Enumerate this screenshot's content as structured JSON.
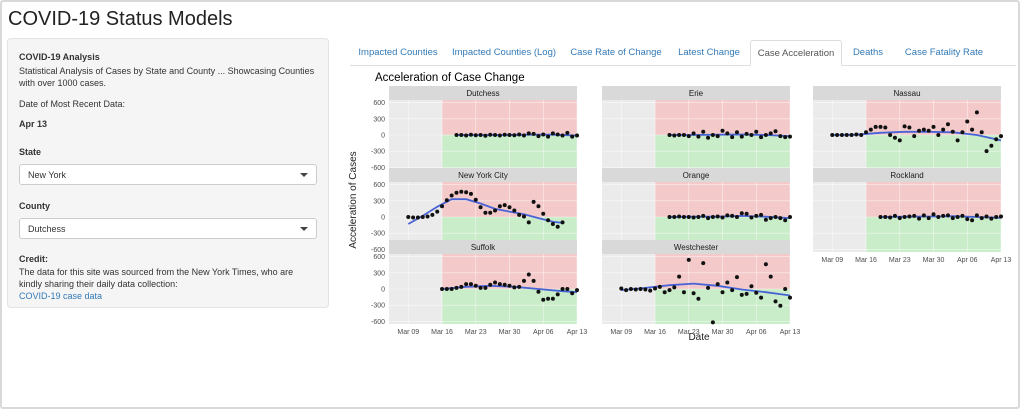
{
  "app": {
    "title": "COVID-19 Status Models"
  },
  "sidebar": {
    "heading": "COVID-19 Analysis",
    "description": "Statistical Analysis of Cases by State and County ... Showcasing Counties with over 1000 cases.",
    "recent_label": "Date of Most Recent Data:",
    "recent_value": "Apr 13",
    "state_label": "State",
    "state_value": "New York",
    "county_label": "County",
    "county_value": "Dutchess",
    "credit_label": "Credit:",
    "credit_text": "The data for this site was sourced from the New York Times, who are kindly sharing their daily data collection:",
    "credit_link": "COVID-19 case data"
  },
  "tabs": [
    {
      "label": "Impacted Counties",
      "active": false
    },
    {
      "label": "Impacted Counties (Log)",
      "active": false
    },
    {
      "label": "Case Rate of Change",
      "active": false
    },
    {
      "label": "Latest Change",
      "active": false
    },
    {
      "label": "Case Acceleration",
      "active": true
    },
    {
      "label": "Deaths",
      "active": false
    },
    {
      "label": "Case Fatality Rate",
      "active": false
    }
  ],
  "chart_data": {
    "type": "scatter",
    "title": "Acceleration of Case Change",
    "xlabel": "Date",
    "ylabel": "Acceleration of Cases",
    "x_ticks": [
      "Mar 09",
      "Mar 16",
      "Mar 23",
      "Mar 30",
      "Apr 06",
      "Apr 13"
    ],
    "y_ticks": [
      600,
      300,
      0,
      -300,
      -600
    ],
    "ylim": [
      -650,
      650
    ],
    "x_range_days": [
      -4,
      35
    ],
    "band_start_day": 7,
    "colors": {
      "positive_band": "#f4c9c9",
      "negative_band": "#c9ecc9",
      "trend": "#4863d6",
      "points": "#111111"
    },
    "panels": [
      {
        "name": "Dutchess",
        "points": [
          [
            10,
            0
          ],
          [
            11,
            0
          ],
          [
            12,
            -10
          ],
          [
            13,
            5
          ],
          [
            14,
            -5
          ],
          [
            15,
            0
          ],
          [
            16,
            -15
          ],
          [
            17,
            5
          ],
          [
            18,
            0
          ],
          [
            19,
            -10
          ],
          [
            20,
            5
          ],
          [
            21,
            0
          ],
          [
            22,
            -5
          ],
          [
            23,
            10
          ],
          [
            24,
            -10
          ],
          [
            25,
            30
          ],
          [
            26,
            20
          ],
          [
            27,
            -20
          ],
          [
            28,
            10
          ],
          [
            29,
            -30
          ],
          [
            30,
            30
          ],
          [
            31,
            10
          ],
          [
            32,
            -10
          ],
          [
            33,
            40
          ],
          [
            34,
            -30
          ],
          [
            35,
            -10
          ]
        ],
        "trend": [
          [
            10,
            0
          ],
          [
            15,
            0
          ],
          [
            20,
            0
          ],
          [
            25,
            5
          ],
          [
            30,
            5
          ],
          [
            35,
            -10
          ]
        ]
      },
      {
        "name": "Erie",
        "points": [
          [
            10,
            0
          ],
          [
            11,
            -10
          ],
          [
            12,
            0
          ],
          [
            13,
            0
          ],
          [
            14,
            -20
          ],
          [
            15,
            30
          ],
          [
            16,
            -30
          ],
          [
            17,
            60
          ],
          [
            18,
            -50
          ],
          [
            19,
            0
          ],
          [
            20,
            -20
          ],
          [
            21,
            80
          ],
          [
            22,
            30
          ],
          [
            23,
            -40
          ],
          [
            24,
            50
          ],
          [
            25,
            -30
          ],
          [
            26,
            20
          ],
          [
            27,
            0
          ],
          [
            28,
            60
          ],
          [
            29,
            -40
          ],
          [
            30,
            0
          ],
          [
            31,
            30
          ],
          [
            32,
            70
          ],
          [
            33,
            -20
          ],
          [
            34,
            -40
          ],
          [
            35,
            -30
          ]
        ],
        "trend": [
          [
            10,
            0
          ],
          [
            15,
            0
          ],
          [
            20,
            5
          ],
          [
            25,
            10
          ],
          [
            30,
            0
          ],
          [
            35,
            -20
          ]
        ]
      },
      {
        "name": "Nassau",
        "points": [
          [
            0,
            0
          ],
          [
            1,
            0
          ],
          [
            2,
            0
          ],
          [
            3,
            0
          ],
          [
            4,
            0
          ],
          [
            5,
            10
          ],
          [
            6,
            0
          ],
          [
            7,
            50
          ],
          [
            8,
            100
          ],
          [
            9,
            150
          ],
          [
            10,
            150
          ],
          [
            11,
            140
          ],
          [
            12,
            0
          ],
          [
            13,
            -50
          ],
          [
            14,
            -100
          ],
          [
            15,
            160
          ],
          [
            16,
            140
          ],
          [
            17,
            -20
          ],
          [
            18,
            80
          ],
          [
            19,
            100
          ],
          [
            20,
            80
          ],
          [
            21,
            150
          ],
          [
            22,
            0
          ],
          [
            23,
            100
          ],
          [
            24,
            200
          ],
          [
            25,
            60
          ],
          [
            26,
            -100
          ],
          [
            27,
            50
          ],
          [
            28,
            250
          ],
          [
            29,
            100
          ],
          [
            30,
            420
          ],
          [
            31,
            50
          ],
          [
            32,
            -300
          ],
          [
            33,
            -200
          ],
          [
            34,
            -80
          ],
          [
            35,
            -20
          ]
        ],
        "trend": [
          [
            0,
            0
          ],
          [
            5,
            5
          ],
          [
            10,
            40
          ],
          [
            15,
            60
          ],
          [
            20,
            60
          ],
          [
            25,
            50
          ],
          [
            30,
            0
          ],
          [
            35,
            -100
          ]
        ]
      },
      {
        "name": "New York City",
        "points": [
          [
            0,
            0
          ],
          [
            1,
            -10
          ],
          [
            2,
            -10
          ],
          [
            3,
            0
          ],
          [
            4,
            10
          ],
          [
            5,
            40
          ],
          [
            6,
            100
          ],
          [
            7,
            200
          ],
          [
            8,
            310
          ],
          [
            9,
            400
          ],
          [
            10,
            450
          ],
          [
            11,
            470
          ],
          [
            12,
            460
          ],
          [
            13,
            430
          ],
          [
            14,
            320
          ],
          [
            15,
            180
          ],
          [
            16,
            80
          ],
          [
            17,
            80
          ],
          [
            18,
            120
          ],
          [
            19,
            200
          ],
          [
            20,
            220
          ],
          [
            21,
            180
          ],
          [
            22,
            120
          ],
          [
            23,
            40
          ],
          [
            24,
            10
          ],
          [
            25,
            -100
          ],
          [
            26,
            280
          ],
          [
            27,
            200
          ],
          [
            28,
            60
          ],
          [
            29,
            -60
          ],
          [
            30,
            -130
          ],
          [
            31,
            -180
          ],
          [
            32,
            -100
          ]
        ],
        "trend": [
          [
            0,
            -130
          ],
          [
            3,
            20
          ],
          [
            6,
            190
          ],
          [
            9,
            330
          ],
          [
            12,
            330
          ],
          [
            15,
            250
          ],
          [
            18,
            150
          ],
          [
            21,
            100
          ],
          [
            24,
            50
          ],
          [
            27,
            -20
          ],
          [
            30,
            -90
          ],
          [
            32,
            -110
          ]
        ]
      },
      {
        "name": "Orange",
        "points": [
          [
            10,
            0
          ],
          [
            11,
            0
          ],
          [
            12,
            10
          ],
          [
            13,
            0
          ],
          [
            14,
            0
          ],
          [
            15,
            -10
          ],
          [
            16,
            0
          ],
          [
            17,
            20
          ],
          [
            18,
            -20
          ],
          [
            19,
            0
          ],
          [
            20,
            10
          ],
          [
            21,
            -10
          ],
          [
            22,
            30
          ],
          [
            23,
            20
          ],
          [
            24,
            0
          ],
          [
            25,
            70
          ],
          [
            26,
            60
          ],
          [
            27,
            -10
          ],
          [
            28,
            20
          ],
          [
            29,
            40
          ],
          [
            30,
            -50
          ],
          [
            31,
            -20
          ],
          [
            32,
            0
          ],
          [
            33,
            -20
          ],
          [
            34,
            -60
          ],
          [
            35,
            0
          ]
        ],
        "trend": [
          [
            10,
            0
          ],
          [
            15,
            5
          ],
          [
            20,
            5
          ],
          [
            25,
            20
          ],
          [
            30,
            5
          ],
          [
            35,
            -20
          ]
        ]
      },
      {
        "name": "Rockland",
        "points": [
          [
            10,
            0
          ],
          [
            11,
            0
          ],
          [
            12,
            -10
          ],
          [
            13,
            20
          ],
          [
            14,
            -20
          ],
          [
            15,
            0
          ],
          [
            16,
            10
          ],
          [
            17,
            20
          ],
          [
            18,
            -30
          ],
          [
            19,
            30
          ],
          [
            20,
            -20
          ],
          [
            21,
            50
          ],
          [
            22,
            0
          ],
          [
            23,
            20
          ],
          [
            24,
            30
          ],
          [
            25,
            -20
          ],
          [
            26,
            0
          ],
          [
            27,
            20
          ],
          [
            28,
            -40
          ],
          [
            29,
            -60
          ],
          [
            30,
            30
          ],
          [
            31,
            -20
          ],
          [
            32,
            10
          ],
          [
            33,
            -30
          ],
          [
            34,
            0
          ],
          [
            35,
            10
          ]
        ],
        "trend": [
          [
            10,
            0
          ],
          [
            15,
            5
          ],
          [
            20,
            10
          ],
          [
            25,
            15
          ],
          [
            30,
            0
          ],
          [
            35,
            -15
          ]
        ]
      },
      {
        "name": "Suffolk",
        "points": [
          [
            7,
            0
          ],
          [
            8,
            0
          ],
          [
            9,
            0
          ],
          [
            10,
            20
          ],
          [
            11,
            40
          ],
          [
            12,
            90
          ],
          [
            13,
            90
          ],
          [
            14,
            60
          ],
          [
            15,
            20
          ],
          [
            16,
            20
          ],
          [
            17,
            80
          ],
          [
            18,
            120
          ],
          [
            19,
            90
          ],
          [
            20,
            80
          ],
          [
            21,
            60
          ],
          [
            22,
            30
          ],
          [
            23,
            40
          ],
          [
            24,
            150
          ],
          [
            25,
            270
          ],
          [
            26,
            150
          ],
          [
            27,
            -50
          ],
          [
            28,
            -200
          ],
          [
            29,
            -180
          ],
          [
            30,
            -180
          ],
          [
            31,
            -100
          ],
          [
            32,
            0
          ],
          [
            33,
            0
          ],
          [
            34,
            -80
          ],
          [
            35,
            -20
          ]
        ],
        "trend": [
          [
            7,
            0
          ],
          [
            12,
            40
          ],
          [
            17,
            60
          ],
          [
            22,
            40
          ],
          [
            27,
            0
          ],
          [
            32,
            -40
          ],
          [
            35,
            -60
          ]
        ]
      },
      {
        "name": "Westchester",
        "points": [
          [
            0,
            10
          ],
          [
            1,
            -20
          ],
          [
            2,
            0
          ],
          [
            3,
            -10
          ],
          [
            4,
            0
          ],
          [
            5,
            -10
          ],
          [
            6,
            -30
          ],
          [
            7,
            10
          ],
          [
            8,
            40
          ],
          [
            9,
            -60
          ],
          [
            10,
            -20
          ],
          [
            11,
            30
          ],
          [
            12,
            230
          ],
          [
            13,
            -60
          ],
          [
            14,
            540
          ],
          [
            15,
            -80
          ],
          [
            16,
            -180
          ],
          [
            17,
            480
          ],
          [
            18,
            20
          ],
          [
            19,
            -620
          ],
          [
            20,
            90
          ],
          [
            21,
            -60
          ],
          [
            22,
            120
          ],
          [
            23,
            -20
          ],
          [
            24,
            220
          ],
          [
            25,
            -110
          ],
          [
            26,
            -90
          ],
          [
            27,
            50
          ],
          [
            28,
            -70
          ],
          [
            29,
            -160
          ],
          [
            30,
            460
          ],
          [
            31,
            230
          ],
          [
            32,
            -230
          ],
          [
            33,
            -310
          ],
          [
            34,
            0
          ],
          [
            35,
            -160
          ]
        ],
        "trend": [
          [
            0,
            -20
          ],
          [
            5,
            20
          ],
          [
            10,
            70
          ],
          [
            15,
            100
          ],
          [
            20,
            60
          ],
          [
            25,
            -10
          ],
          [
            30,
            -60
          ],
          [
            35,
            -120
          ]
        ]
      }
    ]
  }
}
